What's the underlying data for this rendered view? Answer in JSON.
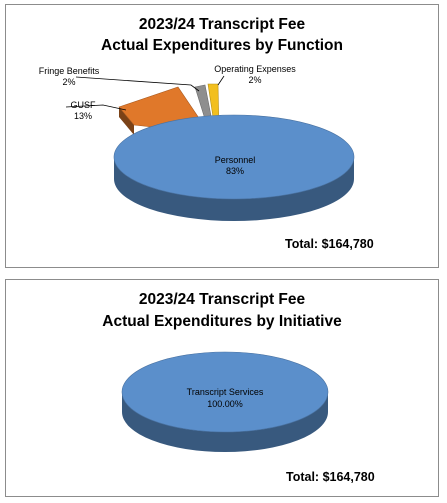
{
  "chart_data": [
    {
      "type": "pie",
      "title_line1": "2023/24 Transcript Fee",
      "title_line2": "Actual Expenditures by Function",
      "total_text": "Total:  $164,780",
      "slices": [
        {
          "name": "Personnel",
          "pct_label": "83%",
          "value": 83,
          "color": "#5b8fcb"
        },
        {
          "name": "GUSF",
          "pct_label": "13%",
          "value": 13,
          "color": "#e0782a"
        },
        {
          "name": "Fringe Benefits",
          "pct_label": "2%",
          "value": 2,
          "color": "#8e8e8e"
        },
        {
          "name": "Operating Expenses",
          "pct_label": "2%",
          "value": 2,
          "color": "#f2bf1e"
        }
      ]
    },
    {
      "type": "pie",
      "title_line1": "2023/24 Transcript Fee",
      "title_line2": "Actual Expenditures by Initiative",
      "total_text": "Total:  $164,780",
      "slices": [
        {
          "name": "Transcript Services",
          "pct_label": "100.00%",
          "value": 100,
          "color": "#5b8fcb"
        }
      ]
    }
  ]
}
